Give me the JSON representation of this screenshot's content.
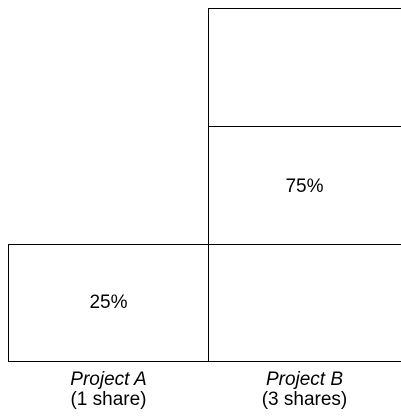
{
  "diagram": {
    "project_a": {
      "name": "Project A",
      "shares_label": "(1 share)",
      "percent_label": "25%"
    },
    "project_b": {
      "name": "Project B",
      "shares_label": "(3 shares)",
      "percent_label": "75%"
    },
    "line_color": "#000000",
    "background": "#ffffff"
  }
}
